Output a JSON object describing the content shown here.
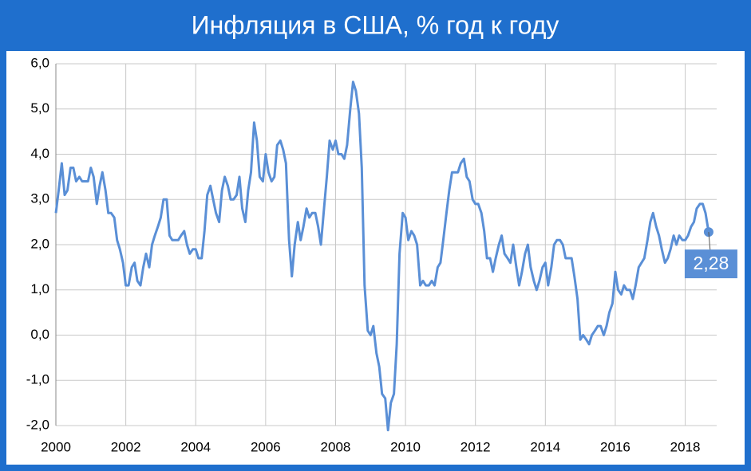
{
  "chart_data": {
    "type": "line",
    "title": "Инфляция в США, % год к году",
    "x": [
      2000,
      2000.08,
      2000.17,
      2000.25,
      2000.33,
      2000.42,
      2000.5,
      2000.58,
      2000.67,
      2000.75,
      2000.83,
      2000.92,
      2001,
      2001.08,
      2001.17,
      2001.25,
      2001.33,
      2001.42,
      2001.5,
      2001.58,
      2001.67,
      2001.75,
      2001.83,
      2001.92,
      2002,
      2002.08,
      2002.17,
      2002.25,
      2002.33,
      2002.42,
      2002.5,
      2002.58,
      2002.67,
      2002.75,
      2002.83,
      2002.92,
      2003,
      2003.08,
      2003.17,
      2003.25,
      2003.33,
      2003.42,
      2003.5,
      2003.58,
      2003.67,
      2003.75,
      2003.83,
      2003.92,
      2004,
      2004.08,
      2004.17,
      2004.25,
      2004.33,
      2004.42,
      2004.5,
      2004.58,
      2004.67,
      2004.75,
      2004.83,
      2004.92,
      2005,
      2005.08,
      2005.17,
      2005.25,
      2005.33,
      2005.42,
      2005.5,
      2005.58,
      2005.67,
      2005.75,
      2005.83,
      2005.92,
      2006,
      2006.08,
      2006.17,
      2006.25,
      2006.33,
      2006.42,
      2006.5,
      2006.58,
      2006.67,
      2006.75,
      2006.83,
      2006.92,
      2007,
      2007.08,
      2007.17,
      2007.25,
      2007.33,
      2007.42,
      2007.5,
      2007.58,
      2007.67,
      2007.75,
      2007.83,
      2007.92,
      2008,
      2008.08,
      2008.17,
      2008.25,
      2008.33,
      2008.42,
      2008.5,
      2008.58,
      2008.67,
      2008.75,
      2008.83,
      2008.92,
      2009,
      2009.08,
      2009.17,
      2009.25,
      2009.33,
      2009.42,
      2009.5,
      2009.58,
      2009.67,
      2009.75,
      2009.83,
      2009.92,
      2010,
      2010.08,
      2010.17,
      2010.25,
      2010.33,
      2010.42,
      2010.5,
      2010.58,
      2010.67,
      2010.75,
      2010.83,
      2010.92,
      2011,
      2011.08,
      2011.17,
      2011.25,
      2011.33,
      2011.42,
      2011.5,
      2011.58,
      2011.67,
      2011.75,
      2011.83,
      2011.92,
      2012,
      2012.08,
      2012.17,
      2012.25,
      2012.33,
      2012.42,
      2012.5,
      2012.58,
      2012.67,
      2012.75,
      2012.83,
      2012.92,
      2013,
      2013.08,
      2013.17,
      2013.25,
      2013.33,
      2013.42,
      2013.5,
      2013.58,
      2013.67,
      2013.75,
      2013.83,
      2013.92,
      2014,
      2014.08,
      2014.17,
      2014.25,
      2014.33,
      2014.42,
      2014.5,
      2014.58,
      2014.67,
      2014.75,
      2014.83,
      2014.92,
      2015,
      2015.08,
      2015.17,
      2015.25,
      2015.33,
      2015.42,
      2015.5,
      2015.58,
      2015.67,
      2015.75,
      2015.83,
      2015.92,
      2016,
      2016.08,
      2016.17,
      2016.25,
      2016.33,
      2016.42,
      2016.5,
      2016.58,
      2016.67,
      2016.75,
      2016.83,
      2016.92,
      2017,
      2017.08,
      2017.17,
      2017.25,
      2017.33,
      2017.42,
      2017.5,
      2017.58,
      2017.67,
      2017.75,
      2017.83,
      2017.92,
      2018,
      2018.08,
      2018.17,
      2018.25,
      2018.33,
      2018.42,
      2018.5,
      2018.58,
      2018.67
    ],
    "values": [
      2.7,
      3.2,
      3.8,
      3.1,
      3.2,
      3.7,
      3.7,
      3.4,
      3.5,
      3.4,
      3.4,
      3.4,
      3.7,
      3.5,
      2.9,
      3.3,
      3.6,
      3.2,
      2.7,
      2.7,
      2.6,
      2.1,
      1.9,
      1.6,
      1.1,
      1.1,
      1.5,
      1.6,
      1.2,
      1.1,
      1.5,
      1.8,
      1.5,
      2.0,
      2.2,
      2.4,
      2.6,
      3.0,
      3.0,
      2.2,
      2.1,
      2.1,
      2.1,
      2.2,
      2.3,
      2.0,
      1.8,
      1.9,
      1.9,
      1.7,
      1.7,
      2.3,
      3.1,
      3.3,
      3.0,
      2.7,
      2.5,
      3.2,
      3.5,
      3.3,
      3.0,
      3.0,
      3.1,
      3.5,
      2.8,
      2.5,
      3.2,
      3.6,
      4.7,
      4.3,
      3.5,
      3.4,
      4.0,
      3.6,
      3.4,
      3.5,
      4.2,
      4.3,
      4.1,
      3.8,
      2.1,
      1.3,
      2.0,
      2.5,
      2.1,
      2.4,
      2.8,
      2.6,
      2.7,
      2.7,
      2.4,
      2.0,
      2.8,
      3.5,
      4.3,
      4.1,
      4.3,
      4.0,
      4.0,
      3.9,
      4.2,
      5.0,
      5.6,
      5.4,
      4.9,
      3.7,
      1.1,
      0.1,
      0.0,
      0.2,
      -0.4,
      -0.7,
      -1.3,
      -1.4,
      -2.1,
      -1.5,
      -1.3,
      -0.2,
      1.8,
      2.7,
      2.6,
      2.1,
      2.3,
      2.2,
      2.0,
      1.1,
      1.2,
      1.1,
      1.1,
      1.2,
      1.1,
      1.5,
      1.6,
      2.1,
      2.7,
      3.2,
      3.6,
      3.6,
      3.6,
      3.8,
      3.9,
      3.5,
      3.4,
      3.0,
      2.9,
      2.9,
      2.7,
      2.3,
      1.7,
      1.7,
      1.4,
      1.7,
      2.0,
      2.2,
      1.8,
      1.7,
      1.6,
      2.0,
      1.5,
      1.1,
      1.4,
      1.8,
      2.0,
      1.5,
      1.2,
      1.0,
      1.2,
      1.5,
      1.6,
      1.1,
      1.5,
      2.0,
      2.1,
      2.1,
      2.0,
      1.7,
      1.7,
      1.7,
      1.3,
      0.8,
      -0.1,
      0.0,
      -0.1,
      -0.2,
      0.0,
      0.1,
      0.2,
      0.2,
      0.0,
      0.2,
      0.5,
      0.7,
      1.4,
      1.0,
      0.9,
      1.1,
      1.0,
      1.0,
      0.8,
      1.1,
      1.5,
      1.6,
      1.7,
      2.1,
      2.5,
      2.7,
      2.4,
      2.2,
      1.9,
      1.6,
      1.7,
      1.9,
      2.2,
      2.0,
      2.2,
      2.1,
      2.1,
      2.2,
      2.4,
      2.5,
      2.8,
      2.9,
      2.9,
      2.7,
      2.28
    ],
    "annotation": "2,28",
    "color": "#5a8fd6",
    "xlim": [
      2000,
      2018.9
    ],
    "xticks": [
      2000,
      2002,
      2004,
      2006,
      2008,
      2010,
      2012,
      2014,
      2016,
      2018
    ],
    "ylim": [
      -2,
      6
    ],
    "yticks": [
      {
        "value": -2,
        "label": "-2,0"
      },
      {
        "value": -1,
        "label": "-1,0"
      },
      {
        "value": 0,
        "label": "0,0"
      },
      {
        "value": 1,
        "label": "1,0"
      },
      {
        "value": 2,
        "label": "2,0"
      },
      {
        "value": 3,
        "label": "3,0"
      },
      {
        "value": 4,
        "label": "4,0"
      },
      {
        "value": 5,
        "label": "5,0"
      },
      {
        "value": 6,
        "label": "6,0"
      }
    ],
    "grid": true
  }
}
